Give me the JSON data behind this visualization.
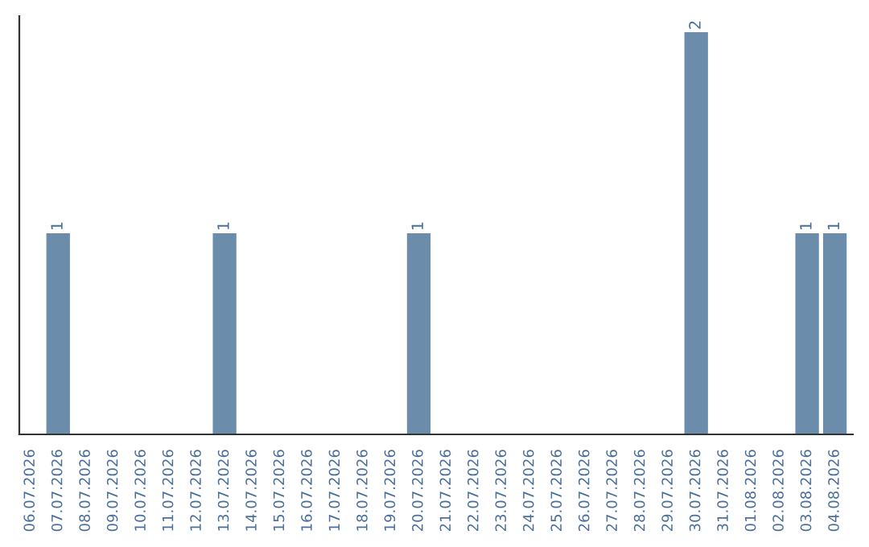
{
  "chart_data": {
    "type": "bar",
    "categories": [
      "06.07.2026",
      "07.07.2026",
      "08.07.2026",
      "09.07.2026",
      "10.07.2026",
      "11.07.2026",
      "12.07.2026",
      "13.07.2026",
      "14.07.2026",
      "15.07.2026",
      "16.07.2026",
      "17.07.2026",
      "18.07.2026",
      "19.07.2026",
      "20.07.2026",
      "21.07.2026",
      "22.07.2026",
      "23.07.2026",
      "24.07.2026",
      "25.07.2026",
      "26.07.2026",
      "27.07.2026",
      "28.07.2026",
      "29.07.2026",
      "30.07.2026",
      "31.07.2026",
      "01.08.2026",
      "02.08.2026",
      "03.08.2026",
      "04.08.2026"
    ],
    "values": [
      0,
      1,
      0,
      0,
      0,
      0,
      0,
      1,
      0,
      0,
      0,
      0,
      0,
      0,
      1,
      0,
      0,
      0,
      0,
      0,
      0,
      0,
      0,
      0,
      2,
      0,
      0,
      0,
      1,
      1
    ],
    "value_labels": [
      null,
      "1",
      null,
      null,
      null,
      null,
      null,
      "1",
      null,
      null,
      null,
      null,
      null,
      null,
      "1",
      null,
      null,
      null,
      null,
      null,
      null,
      null,
      null,
      null,
      "2",
      null,
      null,
      null,
      "1",
      "1"
    ],
    "color": "#6b8cab",
    "grid": false,
    "legend": false,
    "tick_labels": "x"
  }
}
